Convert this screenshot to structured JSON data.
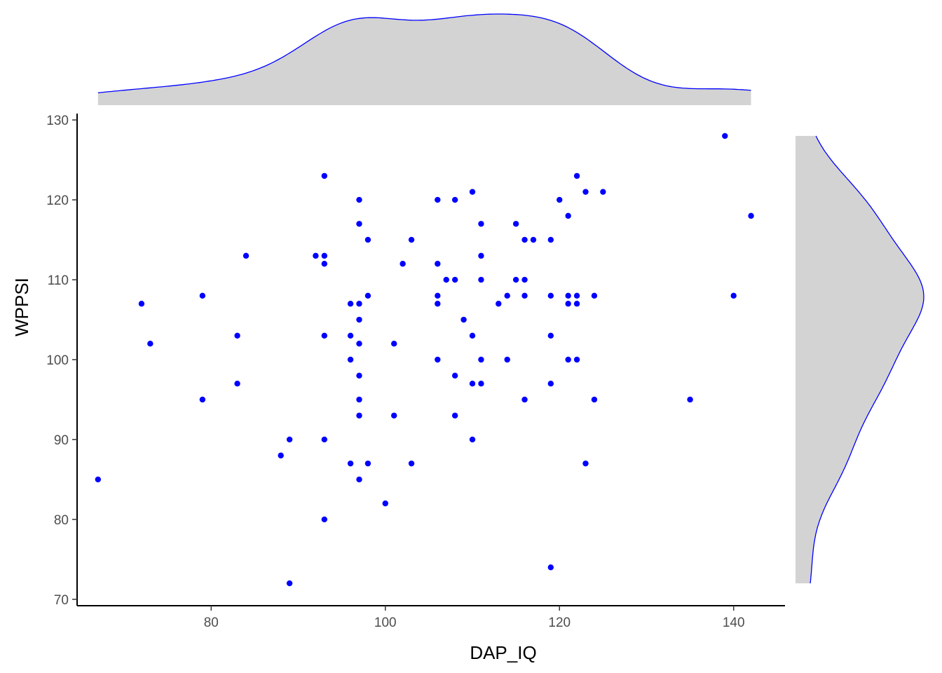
{
  "chart_data": {
    "type": "scatter",
    "title": "",
    "xlabel": "DAP_IQ",
    "ylabel": "WPPSI",
    "xlim": [
      64.6,
      145.9
    ],
    "ylim": [
      69.2,
      130.8
    ],
    "xticks": [
      80,
      100,
      120,
      140
    ],
    "yticks": [
      70,
      80,
      90,
      100,
      110,
      120,
      130
    ],
    "grid": false,
    "point_color": "#0000ff",
    "marginal_density_fill": "#d3d3d3",
    "marginal_density_line": "#0000ff",
    "points": [
      [
        67,
        85
      ],
      [
        72,
        107
      ],
      [
        73,
        102
      ],
      [
        79,
        108
      ],
      [
        79,
        95
      ],
      [
        83,
        103
      ],
      [
        83,
        97
      ],
      [
        84,
        113
      ],
      [
        88,
        88
      ],
      [
        89,
        90
      ],
      [
        89,
        72
      ],
      [
        92,
        113
      ],
      [
        93,
        123
      ],
      [
        93,
        113
      ],
      [
        93,
        112
      ],
      [
        93,
        103
      ],
      [
        93,
        90
      ],
      [
        93,
        80
      ],
      [
        96,
        107
      ],
      [
        96,
        103
      ],
      [
        96,
        100
      ],
      [
        96,
        87
      ],
      [
        97,
        120
      ],
      [
        97,
        117
      ],
      [
        97,
        107
      ],
      [
        97,
        105
      ],
      [
        97,
        102
      ],
      [
        97,
        98
      ],
      [
        97,
        95
      ],
      [
        97,
        93
      ],
      [
        97,
        85
      ],
      [
        98,
        115
      ],
      [
        98,
        108
      ],
      [
        98,
        87
      ],
      [
        100,
        82
      ],
      [
        101,
        102
      ],
      [
        101,
        93
      ],
      [
        102,
        112
      ],
      [
        103,
        115
      ],
      [
        103,
        87
      ],
      [
        106,
        120
      ],
      [
        106,
        112
      ],
      [
        106,
        108
      ],
      [
        106,
        107
      ],
      [
        106,
        100
      ],
      [
        107,
        110
      ],
      [
        108,
        120
      ],
      [
        108,
        110
      ],
      [
        108,
        98
      ],
      [
        108,
        93
      ],
      [
        109,
        105
      ],
      [
        110,
        121
      ],
      [
        110,
        103
      ],
      [
        110,
        97
      ],
      [
        110,
        90
      ],
      [
        111,
        117
      ],
      [
        111,
        113
      ],
      [
        111,
        110
      ],
      [
        111,
        100
      ],
      [
        111,
        97
      ],
      [
        113,
        107
      ],
      [
        114,
        108
      ],
      [
        114,
        100
      ],
      [
        115,
        117
      ],
      [
        115,
        110
      ],
      [
        116,
        115
      ],
      [
        116,
        110
      ],
      [
        116,
        108
      ],
      [
        116,
        95
      ],
      [
        117,
        115
      ],
      [
        119,
        115
      ],
      [
        119,
        108
      ],
      [
        119,
        103
      ],
      [
        119,
        97
      ],
      [
        119,
        74
      ],
      [
        120,
        120
      ],
      [
        121,
        118
      ],
      [
        121,
        108
      ],
      [
        121,
        107
      ],
      [
        121,
        100
      ],
      [
        122,
        123
      ],
      [
        122,
        108
      ],
      [
        122,
        107
      ],
      [
        122,
        100
      ],
      [
        123,
        121
      ],
      [
        123,
        87
      ],
      [
        124,
        108
      ],
      [
        124,
        95
      ],
      [
        125,
        121
      ],
      [
        135,
        95
      ],
      [
        139,
        128
      ],
      [
        140,
        108
      ],
      [
        142,
        118
      ]
    ]
  }
}
